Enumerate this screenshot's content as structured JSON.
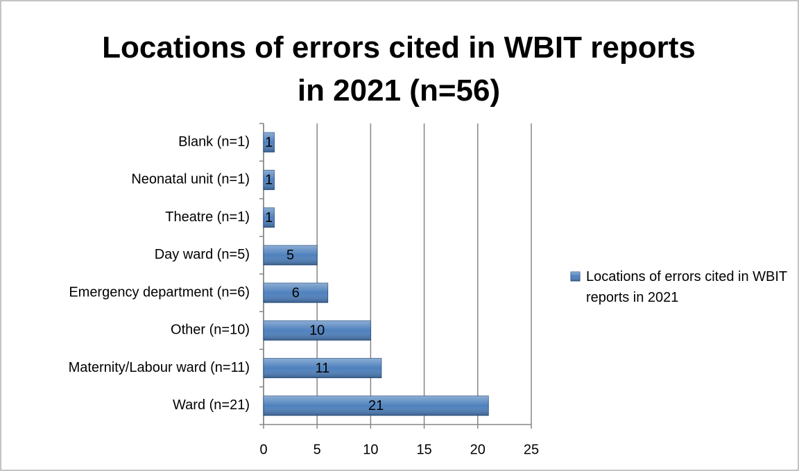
{
  "chart_data": {
    "type": "barh",
    "title": "Locations of errors cited in WBIT reports in 2021 (n=56)",
    "categories": [
      "Blank (n=1)",
      "Neonatal unit (n=1)",
      "Theatre (n=1)",
      "Day ward (n=5)",
      "Emergency department (n=6)",
      "Other (n=10)",
      "Maternity/Labour ward (n=11)",
      "Ward (n=21)"
    ],
    "series": [
      {
        "name": "Locations of errors cited in WBIT reports in 2021",
        "color": "#4f81bd",
        "values": [
          1,
          1,
          1,
          5,
          6,
          10,
          11,
          21
        ]
      }
    ],
    "xlim": [
      0,
      25
    ],
    "xticks": [
      0,
      5,
      10,
      15,
      20,
      25
    ],
    "grid": true,
    "legend": "right"
  }
}
